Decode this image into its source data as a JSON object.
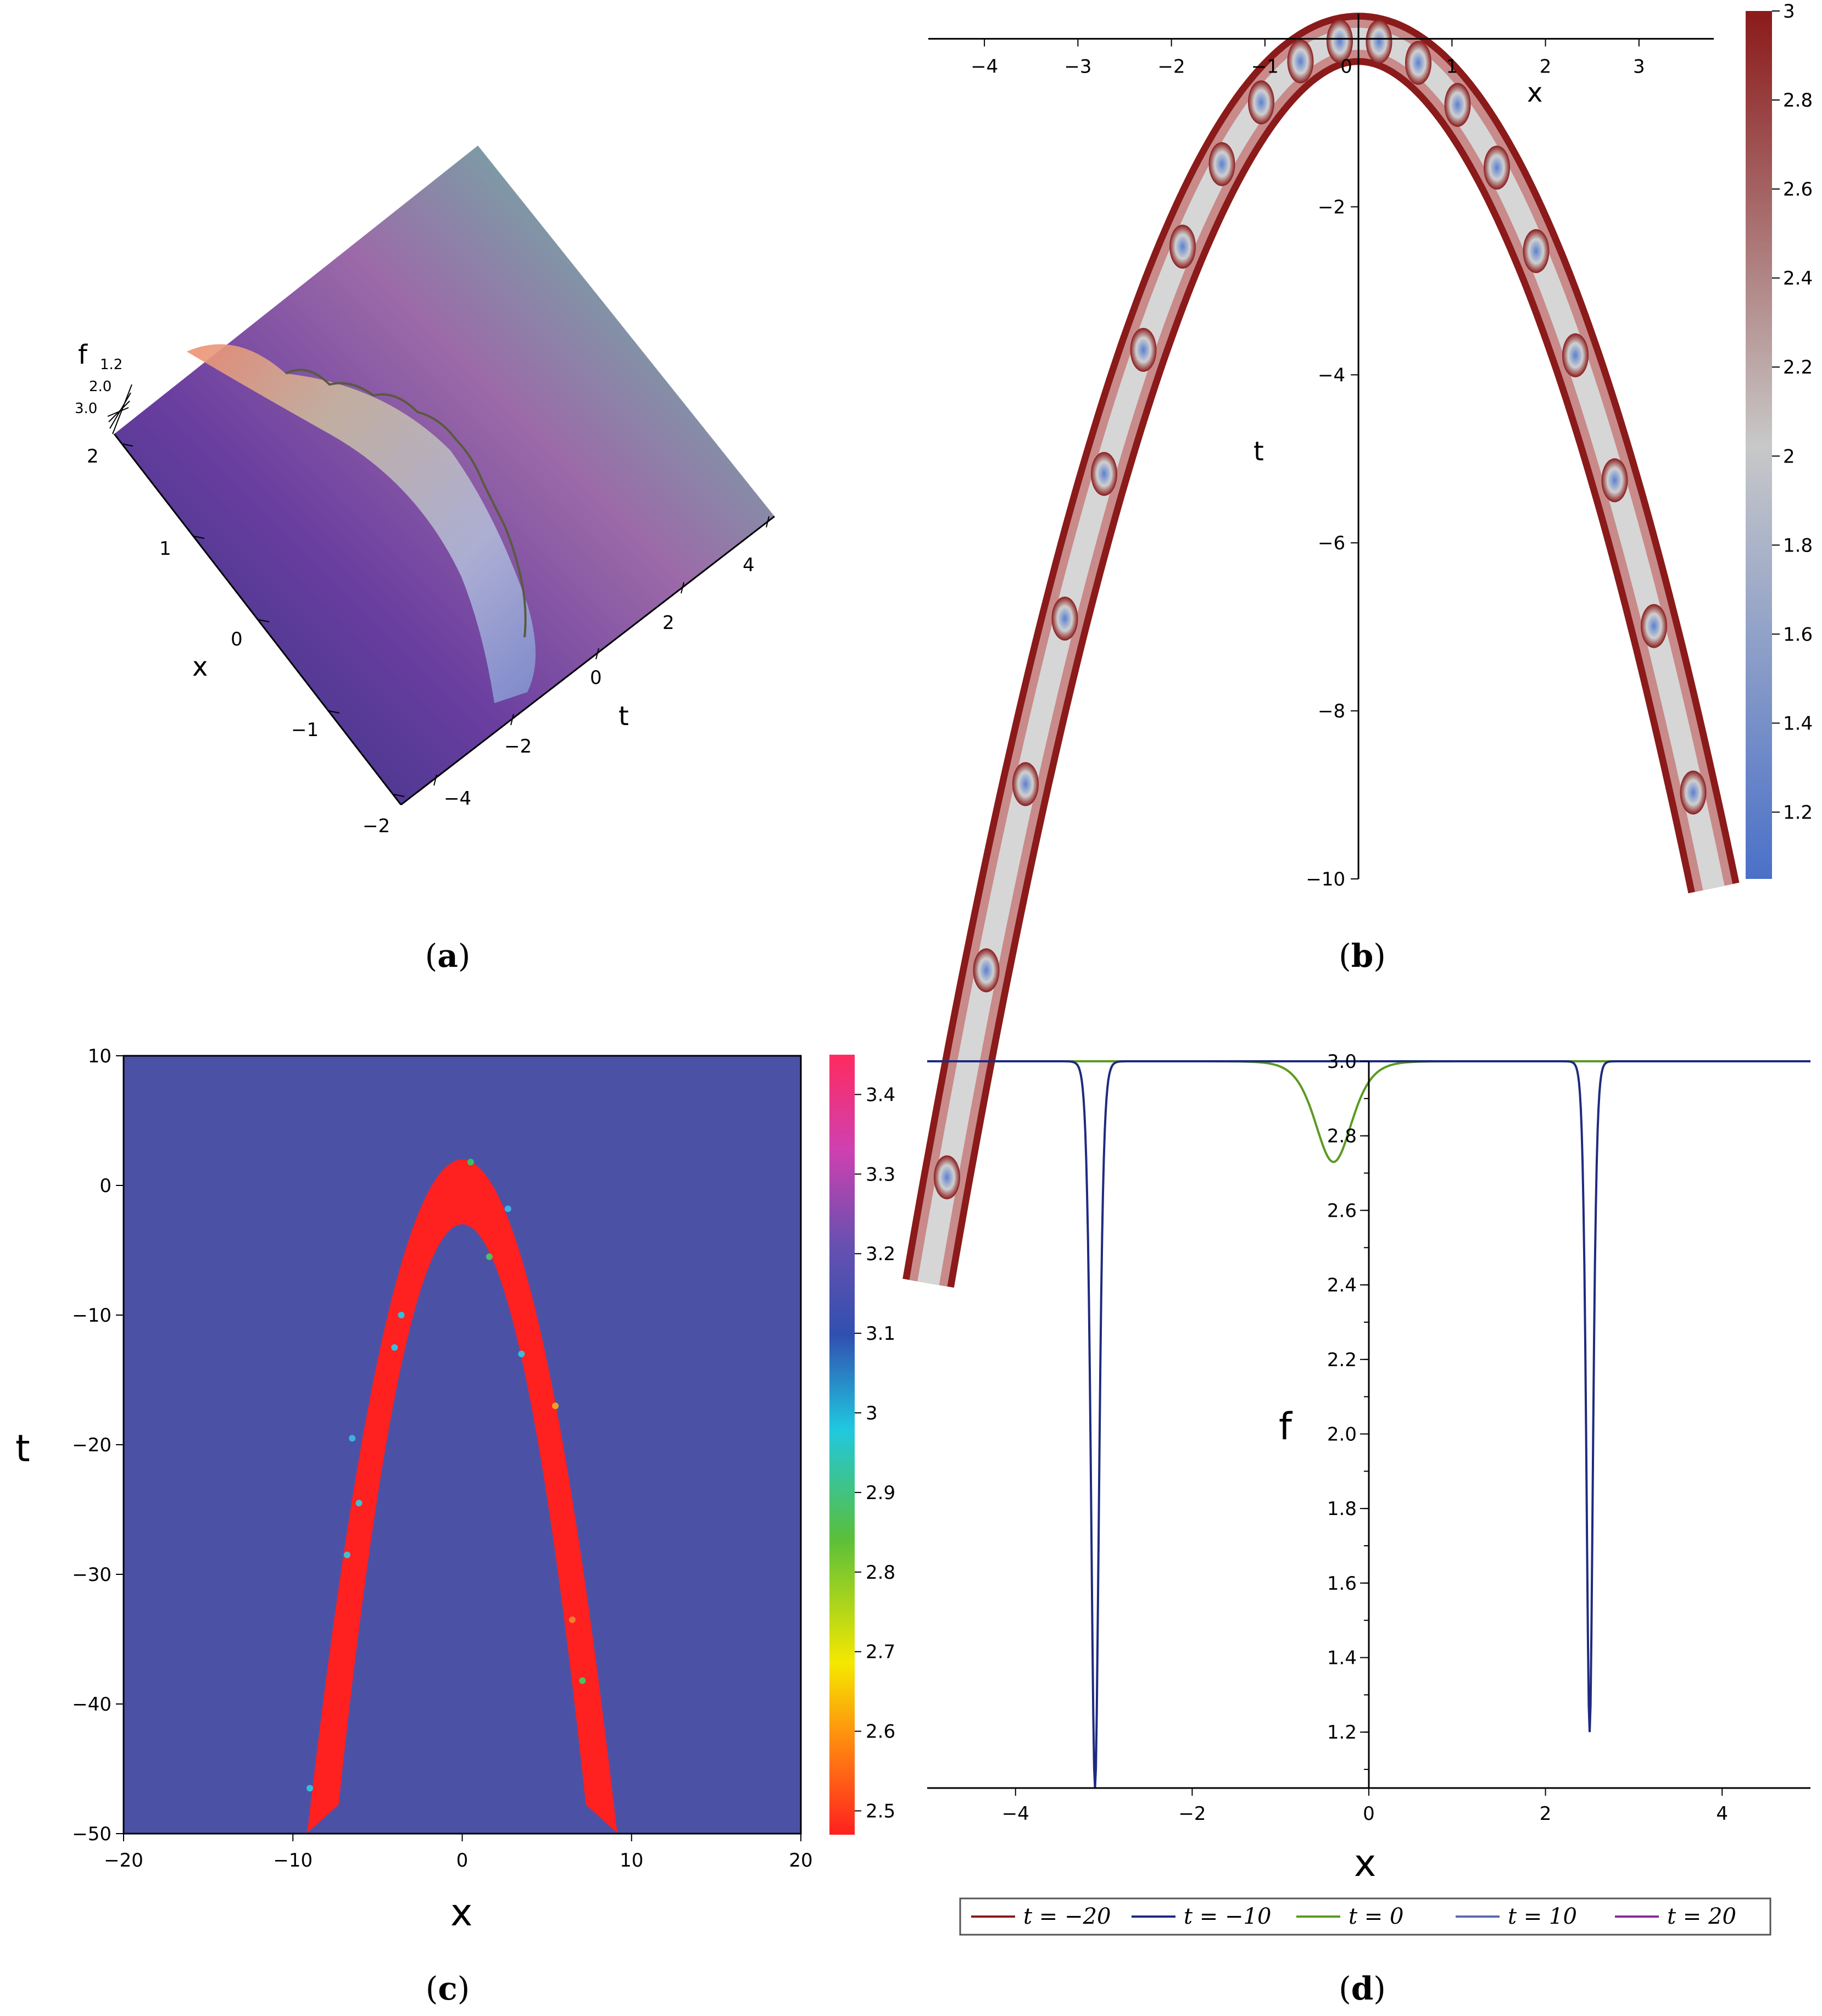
{
  "panels": [
    {
      "caption_open": "(",
      "caption_letter": "a",
      "caption_close": ")"
    },
    {
      "caption_open": "(",
      "caption_letter": "b",
      "caption_close": ")"
    },
    {
      "caption_open": "(",
      "caption_letter": "c",
      "caption_close": ")"
    },
    {
      "caption_open": "(",
      "caption_letter": "d",
      "caption_close": ")"
    }
  ],
  "chart_data": [
    {
      "panel": "a",
      "type": "surface",
      "axes": {
        "x": "x",
        "t": "t",
        "f": "f"
      },
      "x_ticks": [
        "2",
        "1",
        "0",
        "−1",
        "−2"
      ],
      "t_ticks": [
        "4",
        "2",
        "0",
        "−2",
        "−4"
      ],
      "f_ticks": [
        "1.2",
        "2.0",
        "3.0"
      ],
      "xlim": [
        -2,
        2
      ],
      "tlim": [
        -5,
        5
      ],
      "flim": [
        1.2,
        3.0
      ],
      "colors": [
        "#2b2f86",
        "#6a3aa0",
        "#a060b0",
        "#9aa0a8",
        "#2fa0a0",
        "#e8906a"
      ]
    },
    {
      "panel": "b",
      "type": "contour",
      "xlabel": "x",
      "ylabel": "t",
      "xlim": [
        -4.6,
        3.8
      ],
      "ylim": [
        -10,
        0.2
      ],
      "x_ticks": [
        {
          "v": -4,
          "label": "−4"
        },
        {
          "v": -3,
          "label": "−3"
        },
        {
          "v": -2,
          "label": "−2"
        },
        {
          "v": -1,
          "label": "−1"
        },
        {
          "v": 0,
          "label": "0"
        },
        {
          "v": 1,
          "label": "1"
        },
        {
          "v": 2,
          "label": "2"
        },
        {
          "v": 3,
          "label": "3"
        }
      ],
      "y_ticks": [
        {
          "v": -2,
          "label": "−2"
        },
        {
          "v": -4,
          "label": "−4"
        },
        {
          "v": -6,
          "label": "−6"
        },
        {
          "v": -8,
          "label": "−8"
        },
        {
          "v": -10,
          "label": "−10"
        }
      ],
      "ridge": "t ≈ −0.7·x²",
      "colorbar": {
        "min": 1.05,
        "max": 3.0,
        "ticks": [
          "3",
          "2.8",
          "2.6",
          "2.4",
          "2.2",
          "2",
          "1.8",
          "1.6",
          "1.4",
          "1.2"
        ],
        "tick_values": [
          3,
          2.8,
          2.6,
          2.4,
          2.2,
          2,
          1.8,
          1.6,
          1.4,
          1.2
        ],
        "colors": [
          "#4a70c8",
          "#c8c8c8",
          "#8b1a1a"
        ]
      }
    },
    {
      "panel": "c",
      "type": "heatmap",
      "xlabel": "x",
      "ylabel": "t",
      "xlim": [
        -20,
        20
      ],
      "ylim": [
        -50,
        10
      ],
      "x_ticks": [
        {
          "v": -20,
          "label": "−20"
        },
        {
          "v": -10,
          "label": "−10"
        },
        {
          "v": 0,
          "label": "0"
        },
        {
          "v": 10,
          "label": "10"
        },
        {
          "v": 20,
          "label": "20"
        }
      ],
      "y_ticks": [
        {
          "v": 10,
          "label": "10"
        },
        {
          "v": 0,
          "label": "0"
        },
        {
          "v": -10,
          "label": "−10"
        },
        {
          "v": -20,
          "label": "−20"
        },
        {
          "v": -30,
          "label": "−30"
        },
        {
          "v": -40,
          "label": "−40"
        },
        {
          "v": -50,
          "label": "−50"
        }
      ],
      "background_value": 3.15,
      "band_value": 2.5,
      "colorbar": {
        "min": 2.47,
        "max": 3.45,
        "ticks": [
          "3.4",
          "3.3",
          "3.2",
          "3.1",
          "3",
          "2.9",
          "2.8",
          "2.7",
          "2.6",
          "2.5"
        ],
        "tick_values": [
          3.4,
          3.3,
          3.2,
          3.1,
          3.0,
          2.9,
          2.8,
          2.7,
          2.6,
          2.5
        ],
        "colors": [
          "#ff2020",
          "#ff8a10",
          "#f5e800",
          "#5abf3a",
          "#20c8e0",
          "#3050b0",
          "#6a50b0",
          "#d040b0",
          "#ff2a60"
        ]
      }
    },
    {
      "panel": "d",
      "type": "line",
      "xlabel": "x",
      "ylabel": "f",
      "xlim": [
        -5,
        5
      ],
      "ylim": [
        1.05,
        3.0
      ],
      "x_ticks": [
        {
          "v": -4,
          "label": "−4"
        },
        {
          "v": -2,
          "label": "−2"
        },
        {
          "v": 0,
          "label": "0"
        },
        {
          "v": 2,
          "label": "2"
        },
        {
          "v": 4,
          "label": "4"
        }
      ],
      "y_ticks": [
        {
          "v": 3.0,
          "label": "3.0"
        },
        {
          "v": 2.8,
          "label": "2.8"
        },
        {
          "v": 2.6,
          "label": "2.6"
        },
        {
          "v": 2.4,
          "label": "2.4"
        },
        {
          "v": 2.2,
          "label": "2.2"
        },
        {
          "v": 2.0,
          "label": "2.0"
        },
        {
          "v": 1.8,
          "label": "1.8"
        },
        {
          "v": 1.6,
          "label": "1.6"
        },
        {
          "v": 1.4,
          "label": "1.4"
        },
        {
          "v": 1.2,
          "label": "1.2"
        }
      ],
      "series": [
        {
          "name": "t = −20",
          "color": "#8b1a1a",
          "baseline": 3.0,
          "dips": []
        },
        {
          "name": "t = −10",
          "color": "#1f2a80",
          "baseline": 3.0,
          "dips": [
            {
              "x": -3.1,
              "min": 1.05,
              "width": 0.06
            },
            {
              "x": 2.5,
              "min": 1.2,
              "width": 0.05
            }
          ]
        },
        {
          "name": "t = 0",
          "color": "#5a9a20",
          "baseline": 3.0,
          "dips": [
            {
              "x": -0.4,
              "min": 2.73,
              "width": 0.28
            }
          ]
        },
        {
          "name": "t = 10",
          "color": "#5a6ab0",
          "baseline": 3.0,
          "dips": []
        },
        {
          "name": "t = 20",
          "color": "#8a2a9a",
          "baseline": 3.0,
          "dips": []
        }
      ]
    }
  ]
}
